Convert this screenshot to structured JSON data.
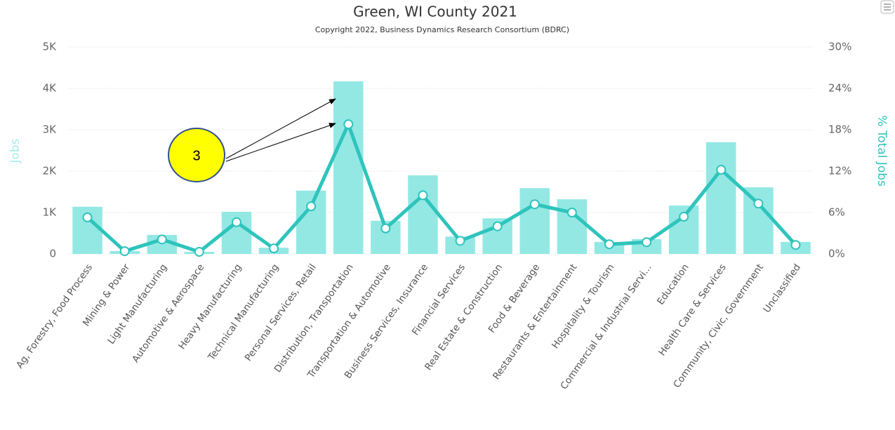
{
  "chart_data": {
    "type": "bar_line",
    "title": "Green, WI County 2021",
    "subtitle": "Copyright 2022, Business Dynamics Research Consortium (BDRC)",
    "y_label": "Jobs",
    "y2_label": "% Total Jobs",
    "annotation": "3",
    "categories": [
      "Ag, Forestry, Food Process",
      "Mining & Power",
      "Light Manufacturing",
      "Automotive & Aerospace",
      "Heavy Manufacturing",
      "Technical Manufacturing",
      "Personal Services, Retail",
      "Distribution, Transportation",
      "Transportation & Automotive",
      "Business Services, Insurance",
      "Financial Services",
      "Real Estate & Construction",
      "Food & Beverage",
      "Restaurants & Entertainment",
      "Hospitality & Tourism",
      "Commercial & Industrial Servi...",
      "Education",
      "Health Care & Services",
      "Community, Civic, Government",
      "Unclassified"
    ],
    "series": [
      {
        "name": "Jobs",
        "color": "#93e8e4",
        "kind": "bar",
        "values": [
          1140,
          70,
          460,
          50,
          1020,
          150,
          1530,
          4170,
          800,
          1900,
          420,
          860,
          1590,
          1320,
          290,
          360,
          1170,
          2700,
          1610,
          290
        ]
      },
      {
        "name": "% Total Jobs",
        "color": "#2ec4bc",
        "kind": "line",
        "axis": "y2",
        "values": [
          5.3,
          0.4,
          2.1,
          0.3,
          4.6,
          0.8,
          6.9,
          18.8,
          3.7,
          8.5,
          1.9,
          4.0,
          7.2,
          6.0,
          1.4,
          1.7,
          5.4,
          12.2,
          7.3,
          1.3
        ]
      }
    ],
    "ylim": [
      0,
      5000
    ],
    "yticks": [
      0,
      {
        "value": 1000,
        "label": "1K"
      },
      {
        "value": 2000,
        "label": "2K"
      },
      {
        "value": 3000,
        "label": "3K"
      },
      {
        "value": 4000,
        "label": "4K"
      },
      {
        "value": 5000,
        "label": "5K"
      }
    ],
    "y2lim": [
      0,
      30
    ],
    "y2ticks": [
      {
        "value": 0,
        "label": "0%"
      },
      {
        "value": 6,
        "label": "6%"
      },
      {
        "value": 12,
        "label": "12%"
      },
      {
        "value": 18,
        "label": "18%"
      },
      {
        "value": 24,
        "label": "24%"
      },
      {
        "value": 30,
        "label": "30%"
      }
    ],
    "grid": true
  }
}
